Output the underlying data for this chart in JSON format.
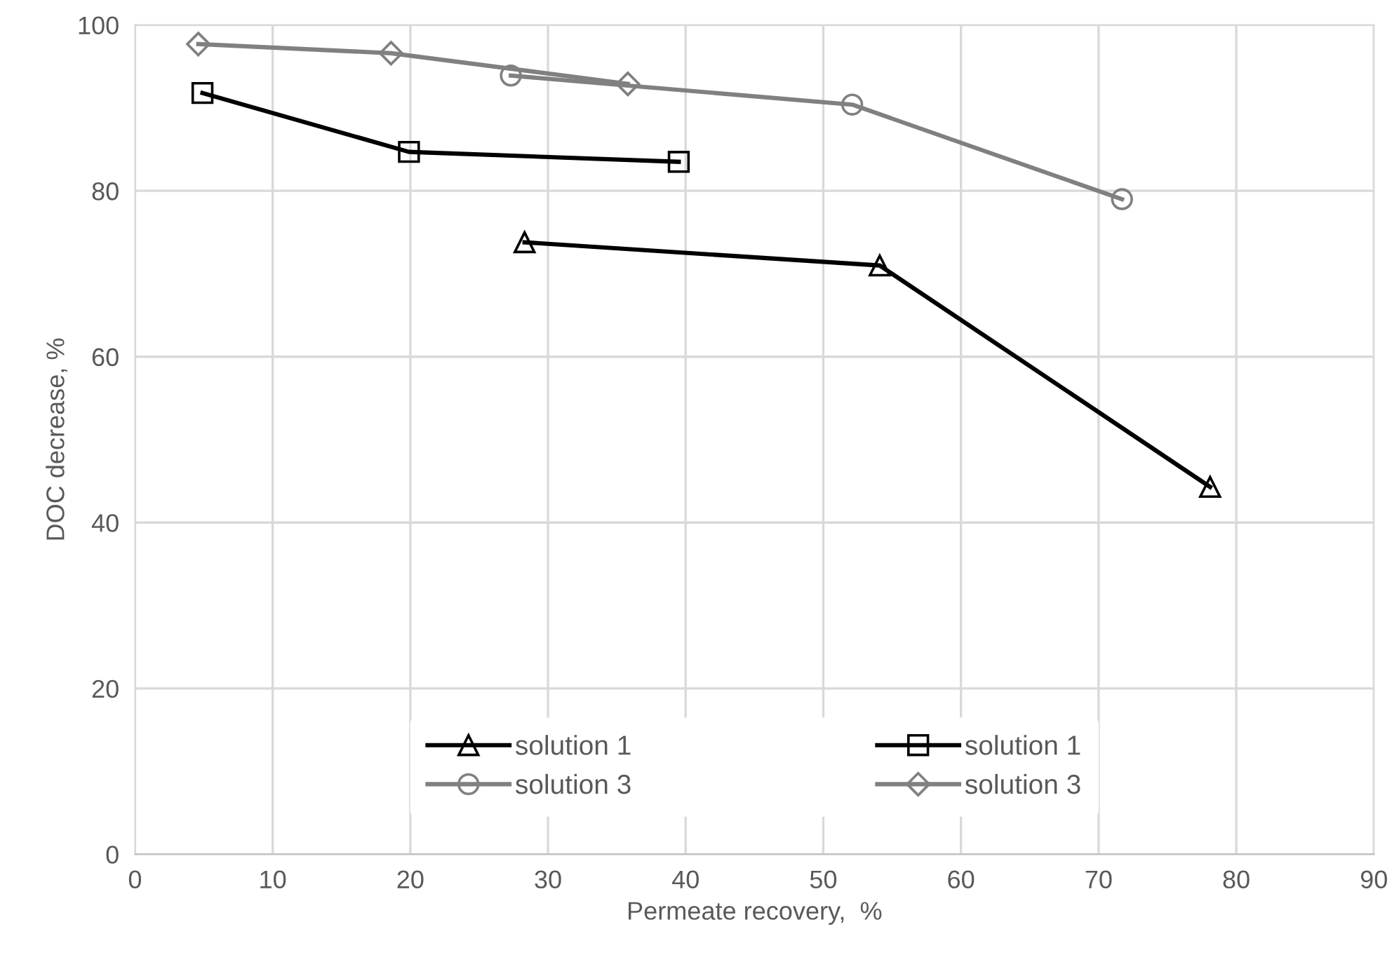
{
  "chart_data": {
    "type": "line",
    "xlabel": "Permeate recovery,  %",
    "ylabel": "DOC decrease, %",
    "xlim": [
      0,
      90
    ],
    "xticks": [
      0,
      10,
      20,
      30,
      40,
      50,
      60,
      70,
      80,
      90
    ],
    "ylim": [
      0,
      100
    ],
    "yticks": [
      0,
      20,
      40,
      60,
      80,
      100
    ],
    "grid": true,
    "legend": "bottom",
    "line_style": "solid",
    "series": [
      {
        "name": "solution 1",
        "color": "#000000",
        "marker": "triangle",
        "x": [
          28.3,
          54.1,
          78.1
        ],
        "values": [
          73.8,
          71.0,
          44.3
        ]
      },
      {
        "name": "solution 1",
        "color": "#000000",
        "marker": "square",
        "x": [
          4.9,
          19.9,
          39.5
        ],
        "values": [
          91.8,
          84.7,
          83.5
        ]
      },
      {
        "name": "solution 3",
        "color": "#808080",
        "marker": "circle",
        "x": [
          27.3,
          52.1,
          71.7
        ],
        "values": [
          93.9,
          90.4,
          79.0
        ]
      },
      {
        "name": "solution 3",
        "color": "#808080",
        "marker": "diamond",
        "x": [
          4.6,
          18.6,
          35.8
        ],
        "values": [
          97.7,
          96.6,
          92.9
        ]
      }
    ]
  }
}
